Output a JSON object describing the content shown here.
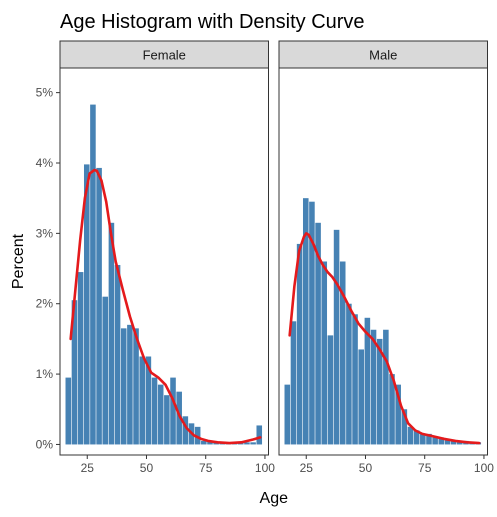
{
  "chart_data": {
    "type": "bar",
    "title": "Age Histogram with Density Curve",
    "xlabel": "Age",
    "ylabel": "Percent",
    "xlim": [
      13.5,
      101.5
    ],
    "ylim": [
      -0.0015,
      0.0535
    ],
    "x_ticks": [
      25,
      50,
      75,
      100
    ],
    "x_tick_labels": [
      "25",
      "50",
      "75",
      "100"
    ],
    "y_ticks": [
      0,
      0.01,
      0.02,
      0.03,
      0.04,
      0.05
    ],
    "y_tick_labels": [
      "0%",
      "1%",
      "2%",
      "3%",
      "4%",
      "5%"
    ],
    "grid": false,
    "legend": "none",
    "colors": {
      "bar": "#4682B4",
      "curve": "#E41A1C",
      "strip": "#D9D9D9"
    },
    "bin_width": 2.6,
    "panels": [
      {
        "name": "Female",
        "bin_centers": [
          17,
          19.6,
          22.2,
          24.8,
          27.4,
          30,
          32.6,
          35.2,
          37.8,
          40.4,
          43,
          45.6,
          48.2,
          50.8,
          53.4,
          56,
          58.6,
          61.2,
          63.8,
          66.4,
          69,
          71.6,
          74.2,
          76.8,
          79.4,
          82,
          84.6,
          87.2,
          89.8,
          92.4,
          95,
          97.6
        ],
        "values": [
          0.0095,
          0.0205,
          0.0245,
          0.0398,
          0.0483,
          0.0393,
          0.021,
          0.0315,
          0.0255,
          0.0165,
          0.017,
          0.0165,
          0.0125,
          0.0125,
          0.0095,
          0.0085,
          0.007,
          0.0095,
          0.0075,
          0.004,
          0.003,
          0.0025,
          0.0005,
          0.0005,
          0.0003,
          0.0003,
          0.0003,
          0.0003,
          0.0003,
          0.0003,
          0.0003,
          0.0027
        ],
        "density": {
          "x": [
            18,
            20,
            22,
            24,
            26,
            28,
            29,
            31,
            33,
            35,
            37,
            40,
            43,
            46,
            49,
            52,
            55,
            58,
            61,
            64,
            67,
            70,
            73,
            76,
            80,
            85,
            90,
            95,
            98
          ],
          "y": [
            0.015,
            0.022,
            0.029,
            0.035,
            0.0385,
            0.039,
            0.0389,
            0.0375,
            0.0345,
            0.03,
            0.026,
            0.022,
            0.0182,
            0.015,
            0.0122,
            0.0102,
            0.0095,
            0.0085,
            0.0065,
            0.004,
            0.0023,
            0.0013,
            0.0008,
            0.0005,
            0.0003,
            0.0002,
            0.0003,
            0.0007,
            0.001
          ]
        }
      },
      {
        "name": "Male",
        "bin_centers": [
          17,
          19.6,
          22.2,
          24.8,
          27.4,
          30,
          32.6,
          35.2,
          37.8,
          40.4,
          43,
          45.6,
          48.2,
          50.8,
          53.4,
          56,
          58.6,
          61.2,
          63.8,
          66.4,
          69,
          71.6,
          74.2,
          76.8,
          79.4,
          82,
          84.6,
          87.2,
          89.8,
          92.4,
          95,
          97.6
        ],
        "values": [
          0.0085,
          0.0175,
          0.0285,
          0.035,
          0.0345,
          0.0315,
          0.026,
          0.0155,
          0.0305,
          0.026,
          0.02,
          0.0185,
          0.0135,
          0.018,
          0.0163,
          0.015,
          0.0163,
          0.01,
          0.0085,
          0.005,
          0.0025,
          0.002,
          0.0015,
          0.0015,
          0.001,
          0.001,
          0.0007,
          0.0005,
          0.0005,
          0.0005,
          0.0003,
          0.0003
        ],
        "density": {
          "x": [
            18,
            20,
            22,
            24,
            25,
            26,
            28,
            30,
            32,
            34,
            36,
            38,
            41,
            44,
            47,
            50,
            53,
            56,
            59,
            62,
            65,
            68,
            71,
            74,
            78,
            83,
            88,
            93,
            98
          ],
          "y": [
            0.0155,
            0.0225,
            0.0275,
            0.0295,
            0.03,
            0.0298,
            0.0285,
            0.0268,
            0.0255,
            0.0245,
            0.0238,
            0.0228,
            0.021,
            0.019,
            0.0172,
            0.016,
            0.015,
            0.0135,
            0.0118,
            0.009,
            0.0055,
            0.003,
            0.002,
            0.0015,
            0.0012,
            0.0008,
            0.0005,
            0.0003,
            0.0002
          ]
        }
      }
    ]
  }
}
